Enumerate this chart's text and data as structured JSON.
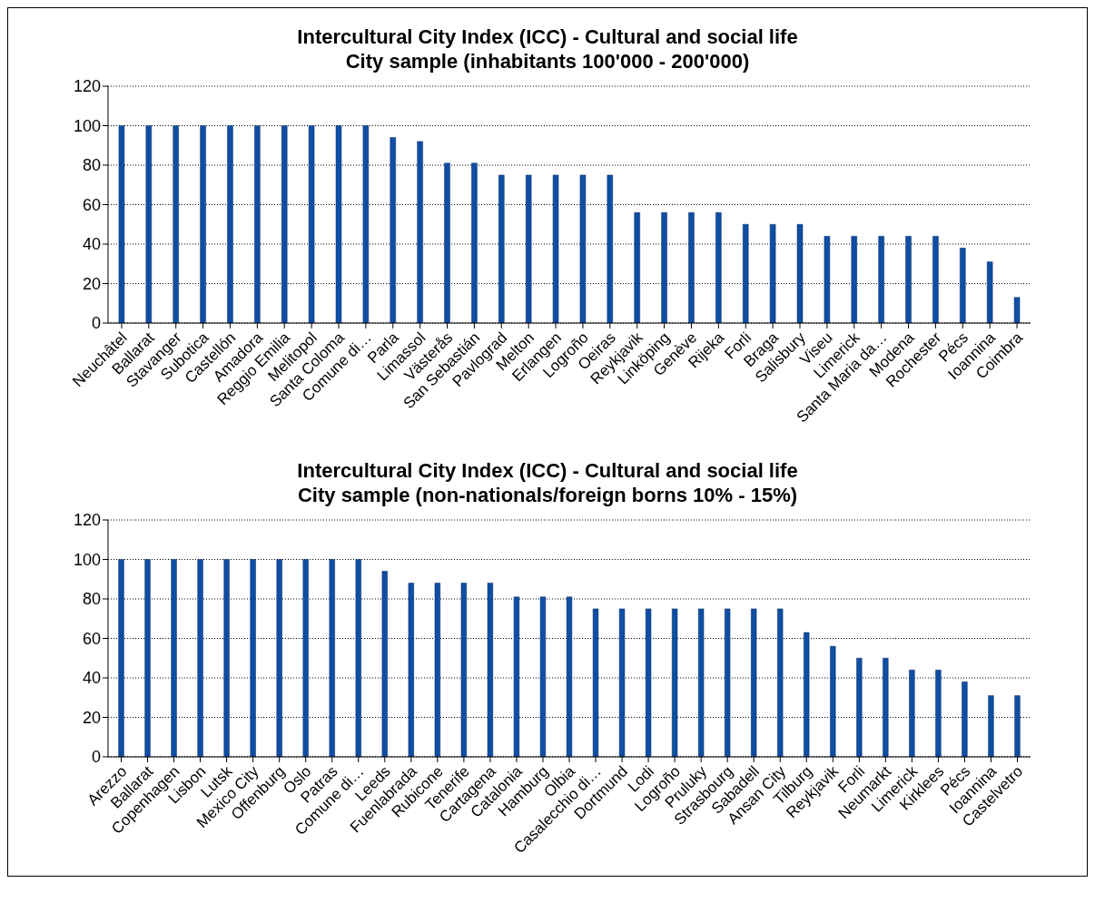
{
  "chart_data": [
    {
      "type": "bar",
      "title": "Intercultural City Index (ICC) - Cultural and social life\nCity sample (inhabitants 100'000 - 200'000)",
      "categories": [
        "Neuchâtel",
        "Ballarat",
        "Stavanger",
        "Subotica",
        "Castellón",
        "Amadora",
        "Reggio Emilia",
        "Melitopol",
        "Santa Coloma",
        "Comune di…",
        "Parla",
        "Limassol",
        "Västerås",
        "San Sebastián",
        "Pavlograd",
        "Melton",
        "Erlangen",
        "Logroño",
        "Oeiras",
        "Reykjavik",
        "Linköping",
        "Genève",
        "Rijeka",
        "Forli",
        "Braga",
        "Salisbury",
        "Viseu",
        "Limerick",
        "Santa Maria da…",
        "Modena",
        "Rochester",
        "Pécs",
        "Ioannina",
        "Coimbra"
      ],
      "values": [
        100,
        100,
        100,
        100,
        100,
        100,
        100,
        100,
        100,
        100,
        94,
        92,
        81,
        81,
        75,
        75,
        75,
        75,
        75,
        56,
        56,
        56,
        56,
        50,
        50,
        50,
        44,
        44,
        44,
        44,
        44,
        38,
        31,
        13
      ],
      "color": "#0f4ea3",
      "ylim": [
        0,
        120
      ],
      "yticks": [
        0,
        20,
        40,
        60,
        80,
        100,
        120
      ],
      "grid": "y"
    },
    {
      "type": "bar",
      "title": "Intercultural City Index (ICC) - Cultural and social life\nCity sample (non-nationals/foreign borns 10% - 15%)",
      "categories": [
        "Arezzo",
        "Ballarat",
        "Copenhagen",
        "Lisbon",
        "Lutsk",
        "Mexico City",
        "Offenburg",
        "Oslo",
        "Patras",
        "Comune di…",
        "Leeds",
        "Fuenlabrada",
        "Rubicone",
        "Tenerife",
        "Cartagena",
        "Catalonia",
        "Hamburg",
        "Olbia",
        "Casalecchio di…",
        "Dortmund",
        "Lodi",
        "Logroño",
        "Pruluky",
        "Strasbourg",
        "Sabadell",
        "Ansan City",
        "Tilburg",
        "Reykjavik",
        "Forli",
        "Neumarkt",
        "Limerick",
        "Kirklees",
        "Pécs",
        "Ioannina",
        "Castelvetro"
      ],
      "values": [
        100,
        100,
        100,
        100,
        100,
        100,
        100,
        100,
        100,
        100,
        94,
        88,
        88,
        88,
        88,
        81,
        81,
        81,
        75,
        75,
        75,
        75,
        75,
        75,
        75,
        75,
        63,
        56,
        50,
        50,
        44,
        44,
        38,
        31,
        31
      ],
      "color": "#0f4ea3",
      "ylim": [
        0,
        120
      ],
      "yticks": [
        0,
        20,
        40,
        60,
        80,
        100,
        120
      ],
      "grid": "y"
    }
  ]
}
